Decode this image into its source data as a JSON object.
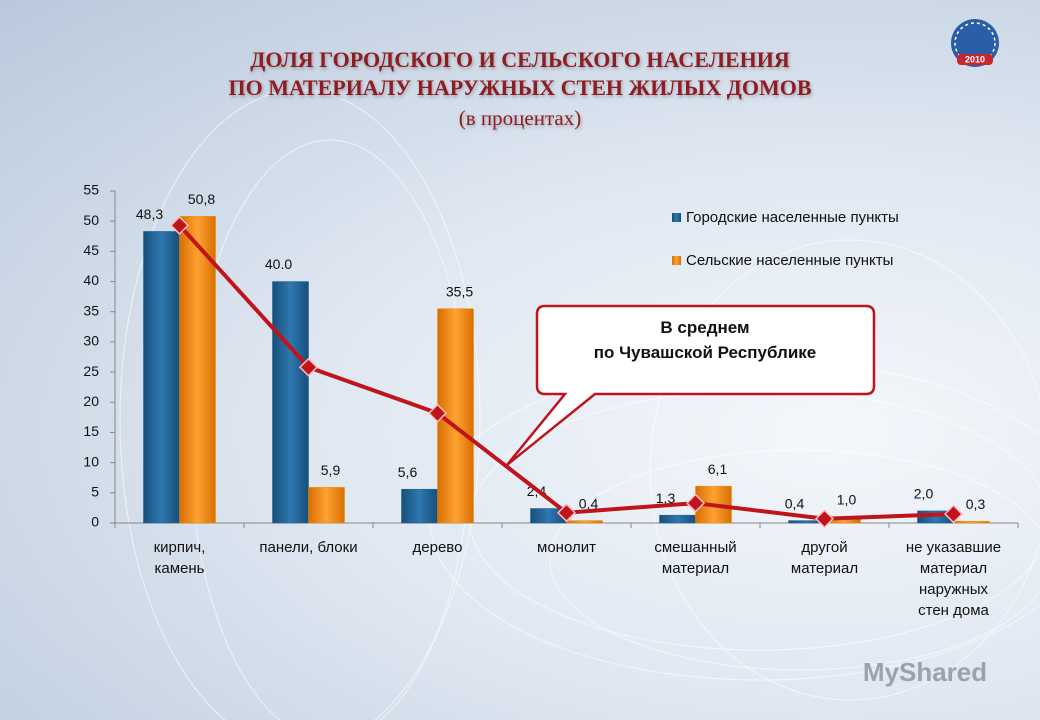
{
  "logo_text": "2010",
  "watermark": "MyShared",
  "chart_data": {
    "type": "bar",
    "title": "ДОЛЯ ГОРОДСКОГО И СЕЛЬСКОГО НАСЕЛЕНИЯ\nПО МАТЕРИАЛУ НАРУЖНЫХ СТЕН  ЖИЛЫХ ДОМОВ",
    "subtitle": "(в процентах)",
    "categories": [
      "кирпич,\nкамень",
      "панели, блоки",
      "дерево",
      "монолит",
      "смешанный\nматериал",
      "другой\nматериал",
      "не указавшие\nматериал\nнаружных\nстен дома"
    ],
    "series": [
      {
        "name": "Городские населенные пункты",
        "color": "#1f5f8f",
        "type": "bar",
        "values": [
          48.3,
          40.0,
          5.6,
          2.4,
          1.3,
          0.4,
          2.0
        ],
        "value_labels": [
          "48,3",
          "40.0",
          "5,6",
          "2,4",
          "1,3",
          "0,4",
          "2,0"
        ]
      },
      {
        "name": "Сельские населенные пункты",
        "color": "#f08a0c",
        "type": "bar",
        "values": [
          50.8,
          5.9,
          35.5,
          0.4,
          6.1,
          1.0,
          0.3
        ],
        "value_labels": [
          "50,8",
          "5,9",
          "35,5",
          "0,4",
          "6,1",
          "1,0",
          "0,3"
        ]
      },
      {
        "name": "В среднем\nпо  Чувашской Республике",
        "color": "#c0141c",
        "type": "line",
        "values": [
          49.3,
          25.8,
          18.2,
          1.7,
          3.3,
          0.7,
          1.5
        ]
      }
    ],
    "ylim": [
      0,
      55
    ],
    "yticks": [
      0,
      5,
      10,
      15,
      20,
      25,
      30,
      35,
      40,
      45,
      50,
      55
    ],
    "legend": "top-right"
  }
}
